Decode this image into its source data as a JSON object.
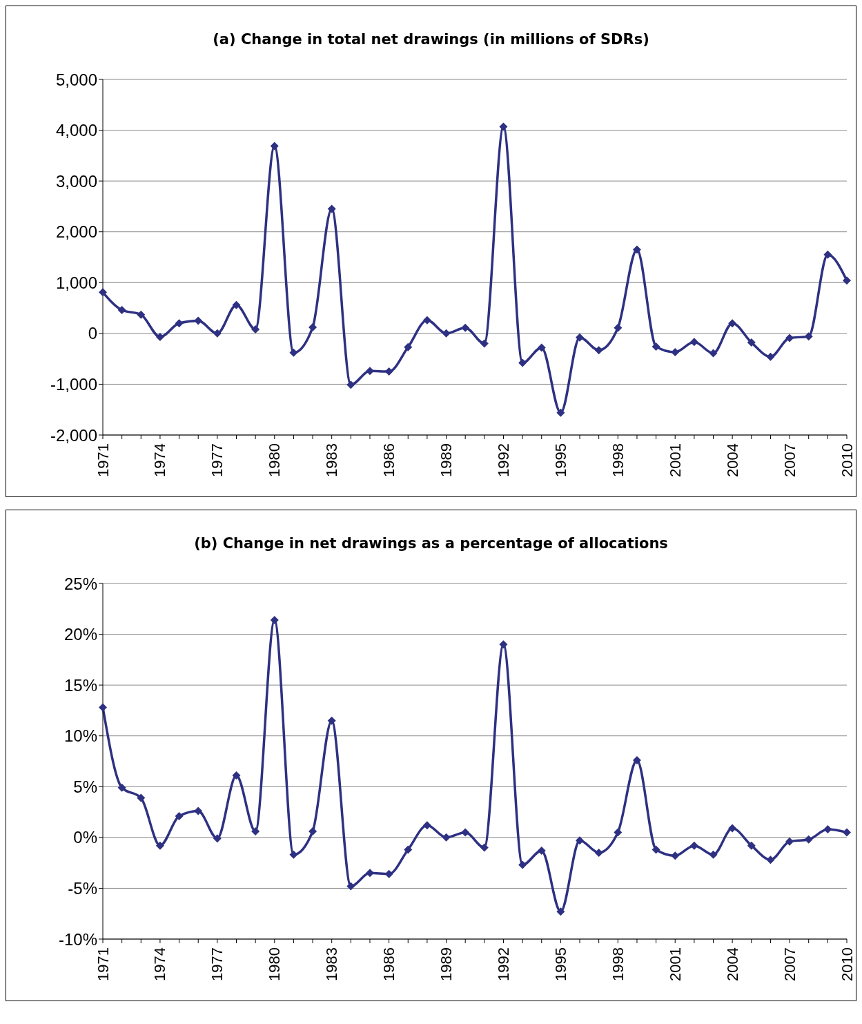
{
  "chart_data": [
    {
      "type": "line",
      "title": "(a)    Change in total net drawings (in millions of SDRs)",
      "categories": [
        "1971",
        null,
        null,
        "1974",
        null,
        null,
        "1977",
        null,
        null,
        "1980",
        null,
        null,
        "1983",
        null,
        null,
        "1986",
        null,
        null,
        "1989",
        null,
        null,
        "1992",
        null,
        null,
        "1995",
        null,
        null,
        "1998",
        null,
        null,
        "2001",
        null,
        null,
        "2004",
        null,
        null,
        "2007",
        null,
        null,
        "2010"
      ],
      "series": [
        {
          "color": "#2e3182",
          "values": [
            810,
            460,
            370,
            -70,
            200,
            250,
            0,
            560,
            80,
            3690,
            -380,
            120,
            2450,
            -1010,
            -740,
            -750,
            -270,
            260,
            0,
            110,
            -200,
            4070,
            -580,
            -280,
            -1560,
            -80,
            -330,
            110,
            1650,
            -260,
            -370,
            -170,
            -390,
            200,
            -180,
            -460,
            -90,
            -60,
            1550,
            1040
          ]
        }
      ],
      "ylim": [
        -2000,
        5000
      ],
      "yticks": [
        {
          "value": -2000,
          "label": "-2,000"
        },
        {
          "value": -1000,
          "label": "-1,000"
        },
        0,
        {
          "value": 1000,
          "label": "1,000"
        },
        {
          "value": 2000,
          "label": "2,000"
        },
        {
          "value": 3000,
          "label": "3,000"
        },
        {
          "value": 4000,
          "label": "4,000"
        },
        {
          "value": 5000,
          "label": "5,000"
        }
      ],
      "grid": "y",
      "marker": "diamond",
      "line_style": "solid",
      "legend": false
    },
    {
      "type": "line",
      "title": "(b)    Change in net drawings as a percentage of allocations",
      "categories": [
        "1971",
        null,
        null,
        "1974",
        null,
        null,
        "1977",
        null,
        null,
        "1980",
        null,
        null,
        "1983",
        null,
        null,
        "1986",
        null,
        null,
        "1989",
        null,
        null,
        "1992",
        null,
        null,
        "1995",
        null,
        null,
        "1998",
        null,
        null,
        "2001",
        null,
        null,
        "2004",
        null,
        null,
        "2007",
        null,
        null,
        "2010"
      ],
      "series": [
        {
          "color": "#2e3182",
          "values": [
            12.8,
            4.9,
            3.9,
            -0.8,
            2.1,
            2.6,
            -0.1,
            6.1,
            0.6,
            21.4,
            -1.7,
            0.6,
            11.5,
            -4.8,
            -3.5,
            -3.6,
            -1.2,
            1.2,
            0,
            0.5,
            -1.0,
            19.0,
            -2.7,
            -1.3,
            -7.3,
            -0.3,
            -1.5,
            0.5,
            7.6,
            -1.2,
            -1.8,
            -0.8,
            -1.7,
            0.9,
            -0.8,
            -2.2,
            -0.4,
            -0.2,
            0.8,
            0.5
          ]
        }
      ],
      "ylim": [
        -10,
        25
      ],
      "yticks": [
        {
          "value": -10,
          "label": "-10%"
        },
        {
          "value": -5,
          "label": "-5%"
        },
        {
          "value": 0,
          "label": "0%"
        },
        {
          "value": 5,
          "label": "5%"
        },
        {
          "value": 10,
          "label": "10%"
        },
        {
          "value": 15,
          "label": "15%"
        },
        {
          "value": 20,
          "label": "20%"
        },
        {
          "value": 25,
          "label": "25%"
        }
      ],
      "grid": "y",
      "marker": "diamond",
      "line_style": "solid",
      "legend": false
    }
  ]
}
